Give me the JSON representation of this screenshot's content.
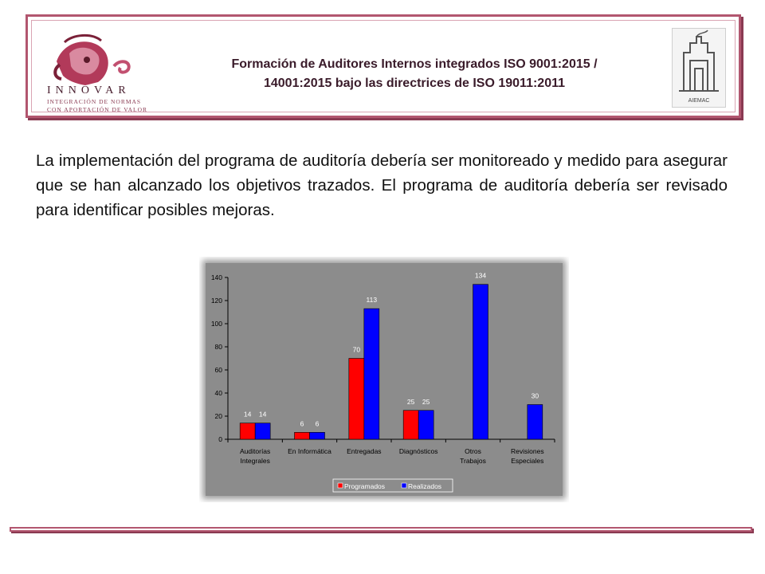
{
  "header": {
    "title_line1": "Formación de Auditores Internos integrados ISO 9001:2015 /",
    "title_line2": "14001:2015 bajo las directrices de ISO 19011:2011",
    "logo_left_text": "INNOVAR",
    "logo_left_tagline1": "INTEGRACIÓN DE NORMAS",
    "logo_left_tagline2": "CON APORTACIÓN DE VALOR",
    "logo_right_text": "AIEMAC"
  },
  "body": {
    "paragraph": "La implementación del programa de auditoría debería ser monitoreado y medido para asegurar que se han alcanzado los objetivos trazados. El programa de auditoría debería ser revisado para identificar posibles mejoras."
  },
  "colors": {
    "frame": "#b2566f",
    "programados": "#ff0000",
    "realizados": "#0000ff",
    "chart_bg": "#8a8a8a"
  },
  "chart_data": {
    "type": "bar",
    "categories": [
      [
        "Auditorías",
        "Integrales"
      ],
      [
        "En Informática"
      ],
      [
        "Entregadas"
      ],
      [
        "Diagnósticos"
      ],
      [
        "Otros",
        "Trabajos"
      ],
      [
        "Revisiones",
        "Especiales"
      ]
    ],
    "series": [
      {
        "name": "Programados",
        "color": "#ff0000",
        "values": [
          14,
          6,
          70,
          25,
          null,
          null
        ]
      },
      {
        "name": "Realizados",
        "color": "#0000ff",
        "values": [
          14,
          6,
          113,
          25,
          134,
          30
        ]
      }
    ],
    "ylim": [
      0,
      140
    ],
    "yticks": [
      0,
      20,
      40,
      60,
      80,
      100,
      120,
      140
    ],
    "grid": false,
    "legend_position": "bottom"
  }
}
